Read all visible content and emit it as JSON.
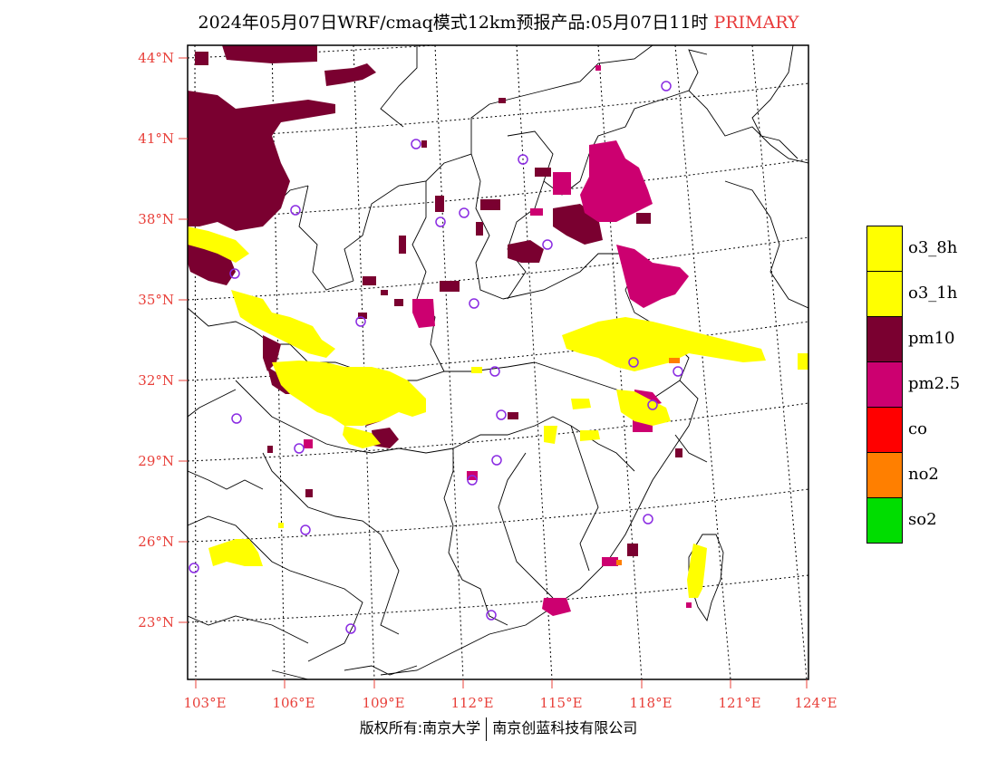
{
  "title": {
    "main": "2024年05月07日WRF/cmaq模式12km预报产品:05月07日11时",
    "tag": "PRIMARY"
  },
  "lat_labels": [
    "44°N",
    "41°N",
    "38°N",
    "35°N",
    "32°N",
    "29°N",
    "26°N",
    "23°N"
  ],
  "lon_labels": [
    "103°E",
    "106°E",
    "109°E",
    "112°E",
    "115°E",
    "118°E",
    "121°E",
    "124°E"
  ],
  "legend": [
    {
      "label": "o3_8h",
      "color": "#ffff00"
    },
    {
      "label": "o3_1h",
      "color": "#ffff00"
    },
    {
      "label": "pm10",
      "color": "#7a0030"
    },
    {
      "label": "pm2.5",
      "color": "#cc0070"
    },
    {
      "label": "co",
      "color": "#ff0000"
    },
    {
      "label": "no2",
      "color": "#ff7f00"
    },
    {
      "label": "so2",
      "color": "#00dd00"
    }
  ],
  "footer": {
    "left": "版权所有:南京大学",
    "right": "南京创蓝科技有限公司"
  }
}
